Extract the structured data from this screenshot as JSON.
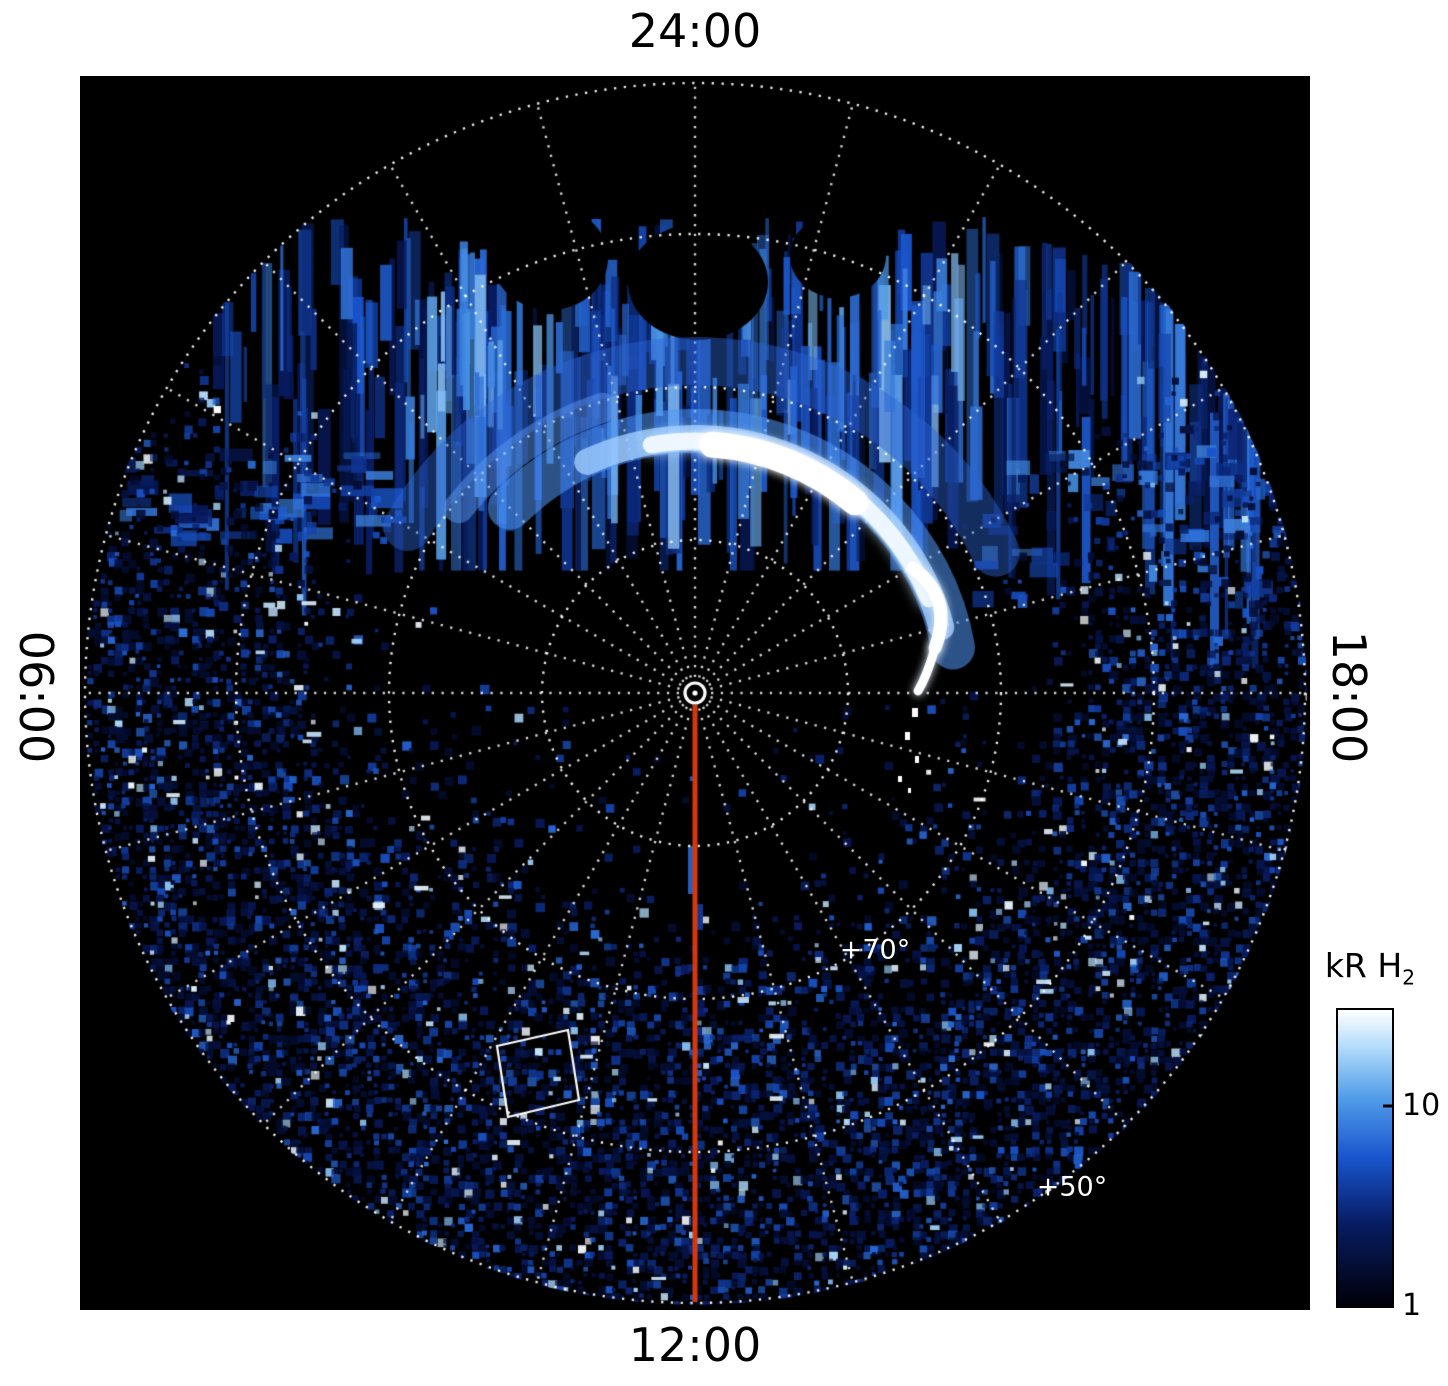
{
  "chart_data": {
    "type": "heatmap",
    "projection": "polar",
    "title": "",
    "description": "Polar projection of H2 auroral emission brightness. Planetary pole at center, dotted latitude circles every 10 degrees from the pole out to +50 at the edge, dotted local-time spokes every hour. A bright auroral arc sits on the nightside (top, around midnight) near +70 to +78 latitude; streaked blue emission fills the nightside sectors; faint speckled diffuse emission covers the dayside (bottom). A red meridian line marks 12:00 local time and a small white box outlines a field-of-view region.",
    "local_time_labels": [
      {
        "label": "24:00",
        "position": "top"
      },
      {
        "label": "12:00",
        "position": "bottom"
      },
      {
        "label": "06:00",
        "position": "left"
      },
      {
        "label": "18:00",
        "position": "right"
      }
    ],
    "latitude": {
      "pole_deg": 90,
      "edge_deg": 50,
      "ring_step_deg": 10,
      "rings_deg": [
        80,
        70,
        60,
        50
      ],
      "ring_labels": [
        {
          "text": "+70°"
        },
        {
          "text": "+50°"
        }
      ]
    },
    "spokes": {
      "count": 24,
      "step_hours": 1,
      "step_deg": 15
    },
    "colorbar": {
      "title_main": "kR H",
      "title_sub": "2",
      "scale": "log",
      "min": 1,
      "max": 30,
      "ticks": [
        {
          "value": 10,
          "label": "10"
        },
        {
          "value": 1,
          "label": "1"
        }
      ],
      "gradient_stops": [
        {
          "t": 0.0,
          "color": "#000008"
        },
        {
          "t": 0.28,
          "color": "#081c64"
        },
        {
          "t": 0.5,
          "color": "#1955cd"
        },
        {
          "t": 0.7,
          "color": "#509be8"
        },
        {
          "t": 0.87,
          "color": "#b0dafa"
        },
        {
          "t": 1.0,
          "color": "#ffffff"
        }
      ]
    },
    "annotations": {
      "meridian_line": {
        "local_time": "12:00",
        "color": "#d6380c"
      },
      "pole_marker": {
        "color": "#ffffff"
      },
      "fov_box": {
        "color": "#ffffff"
      }
    },
    "features": [
      {
        "name": "main auroral arc",
        "local_time_span": "20:00-03:00",
        "latitude_span_deg": [
          68,
          78
        ],
        "peak_brightness_kR": 30
      },
      {
        "name": "streaked nightside emission",
        "local_time_span": "19:00-05:00",
        "latitude_span_deg": [
          60,
          78
        ],
        "brightness_kR": 5
      },
      {
        "name": "diffuse dayside speckle",
        "local_time_span": "05:00-19:00",
        "latitude_span_deg": [
          50,
          70
        ],
        "brightness_kR": 2
      }
    ]
  }
}
